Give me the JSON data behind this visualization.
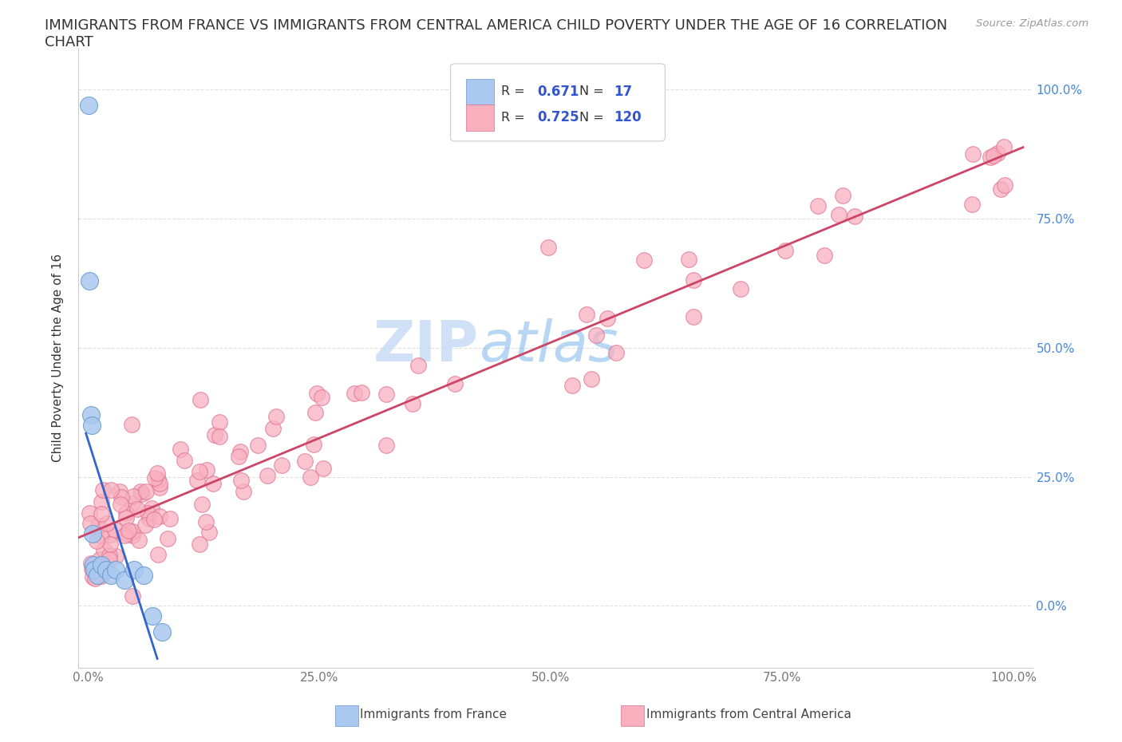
{
  "title_line1": "IMMIGRANTS FROM FRANCE VS IMMIGRANTS FROM CENTRAL AMERICA CHILD POVERTY UNDER THE AGE OF 16 CORRELATION",
  "title_line2": "CHART",
  "source": "Source: ZipAtlas.com",
  "ylabel": "Child Poverty Under the Age of 16",
  "xlim": [
    -0.01,
    1.02
  ],
  "ylim": [
    -0.12,
    1.08
  ],
  "x_ticks": [
    0.0,
    0.25,
    0.5,
    0.75,
    1.0
  ],
  "x_tick_labels": [
    "0.0%",
    "25.0%",
    "50.0%",
    "75.0%",
    "100.0%"
  ],
  "y_ticks": [
    0.0,
    0.25,
    0.5,
    0.75,
    1.0
  ],
  "y_tick_labels": [
    "0.0%",
    "25.0%",
    "50.0%",
    "75.0%",
    "100.0%"
  ],
  "france_color": "#aac8f0",
  "france_edge_color": "#6699cc",
  "central_america_color": "#f8b0bf",
  "central_america_edge_color": "#e07090",
  "france_line_color": "#3366cc",
  "central_america_line_color": "#cc4466",
  "R_france": 0.671,
  "N_france": 17,
  "R_central_america": 0.725,
  "N_central_america": 120,
  "legend_R_color": "#3355cc",
  "tick_color": "#4488dd",
  "watermark_color": "#c5daf5",
  "grid_color": "#dddddd"
}
